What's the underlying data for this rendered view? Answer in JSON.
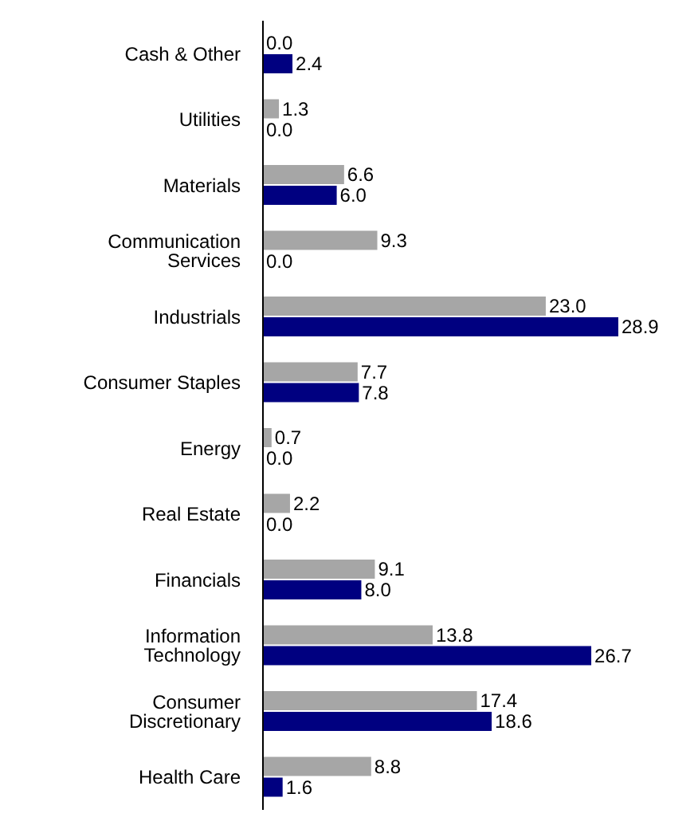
{
  "chart_data": {
    "type": "bar",
    "orientation": "horizontal",
    "categories": [
      "Cash & Other",
      "Utilities",
      "Materials",
      "Communication Services",
      "Industrials",
      "Consumer Staples",
      "Energy",
      "Real Estate",
      "Financials",
      "Information Technology",
      "Consumer Discretionary",
      "Health Care"
    ],
    "series": [
      {
        "color": "#a6a6a6",
        "values": [
          0.0,
          1.3,
          6.6,
          9.3,
          23.0,
          7.7,
          0.7,
          2.2,
          9.1,
          13.8,
          17.4,
          8.8
        ],
        "value_labels": [
          "0.0",
          "1.3",
          "6.6",
          "9.3",
          "23.0",
          "7.7",
          "0.7",
          "2.2",
          "9.1",
          "13.8",
          "17.4",
          "8.8"
        ]
      },
      {
        "color": "#000080",
        "values": [
          2.4,
          0.0,
          6.0,
          0.0,
          28.9,
          7.8,
          0.0,
          0.0,
          8.0,
          26.7,
          18.6,
          1.6
        ],
        "value_labels": [
          "2.4",
          "0.0",
          "6.0",
          "0.0",
          "28.9",
          "7.8",
          "0.0",
          "0.0",
          "8.0",
          "26.7",
          "18.6",
          "1.6"
        ]
      }
    ],
    "grid": false,
    "legend": false
  }
}
